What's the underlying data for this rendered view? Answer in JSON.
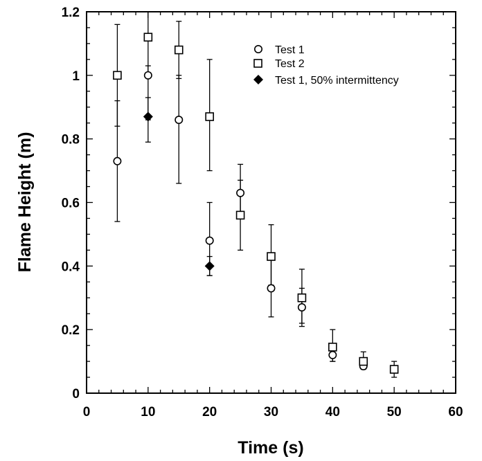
{
  "chart_data": {
    "type": "scatter",
    "xlabel": "Time (s)",
    "ylabel": "Flame Height  (m)",
    "xlim": [
      0,
      60
    ],
    "ylim": [
      0,
      1.2
    ],
    "xticks": [
      0,
      10,
      20,
      30,
      40,
      50,
      60
    ],
    "xtick_labels": [
      "0",
      "10",
      "20",
      "30",
      "40",
      "50",
      "60"
    ],
    "yticks": [
      0,
      0.2,
      0.4,
      0.6,
      0.8,
      1.0,
      1.2
    ],
    "ytick_labels": [
      "0",
      "0.2",
      "0.4",
      "0.6",
      "0.8",
      "1",
      "1.2"
    ],
    "legend_position": "top-right",
    "grid": false,
    "series": [
      {
        "name": "Test 1",
        "marker": "open-circle",
        "points": [
          {
            "x": 5,
            "y": 0.73,
            "lo": 0.54,
            "hi": 0.92
          },
          {
            "x": 10,
            "y": 1.0,
            "lo": 0.86,
            "hi": 1.03
          },
          {
            "x": 15,
            "y": 0.86,
            "lo": 0.66,
            "hi": 1.0
          },
          {
            "x": 20,
            "y": 0.48,
            "lo": 0.37,
            "hi": 0.6
          },
          {
            "x": 25,
            "y": 0.63,
            "lo": 0.55,
            "hi": 0.72
          },
          {
            "x": 30,
            "y": 0.33,
            "lo": 0.24,
            "hi": 0.42
          },
          {
            "x": 35,
            "y": 0.27,
            "lo": 0.22,
            "hi": 0.33
          },
          {
            "x": 40,
            "y": 0.12,
            "lo": 0.1,
            "hi": 0.15
          },
          {
            "x": 45,
            "y": 0.085,
            "lo": 0.08,
            "hi": 0.09
          },
          {
            "x": 50,
            "y": 0.075,
            "lo": 0.07,
            "hi": 0.08
          }
        ]
      },
      {
        "name": "Test 2",
        "marker": "open-square",
        "points": [
          {
            "x": 5,
            "y": 1.0,
            "lo": 0.84,
            "hi": 1.16
          },
          {
            "x": 10,
            "y": 1.12,
            "lo": 1.0,
            "hi": 1.2
          },
          {
            "x": 15,
            "y": 1.08,
            "lo": 0.99,
            "hi": 1.17
          },
          {
            "x": 20,
            "y": 0.87,
            "lo": 0.7,
            "hi": 1.05
          },
          {
            "x": 25,
            "y": 0.56,
            "lo": 0.45,
            "hi": 0.67
          },
          {
            "x": 30,
            "y": 0.43,
            "lo": 0.34,
            "hi": 0.53
          },
          {
            "x": 35,
            "y": 0.3,
            "lo": 0.21,
            "hi": 0.39
          },
          {
            "x": 40,
            "y": 0.145,
            "lo": 0.1,
            "hi": 0.2
          },
          {
            "x": 45,
            "y": 0.1,
            "lo": 0.075,
            "hi": 0.13
          },
          {
            "x": 50,
            "y": 0.075,
            "lo": 0.05,
            "hi": 0.1
          }
        ]
      },
      {
        "name": "Test 1, 50% intermittency",
        "marker": "filled-diamond",
        "points": [
          {
            "x": 10,
            "y": 0.87,
            "lo": 0.79,
            "hi": 0.93
          },
          {
            "x": 20,
            "y": 0.4,
            "lo": 0.37,
            "hi": 0.43
          }
        ]
      }
    ]
  }
}
